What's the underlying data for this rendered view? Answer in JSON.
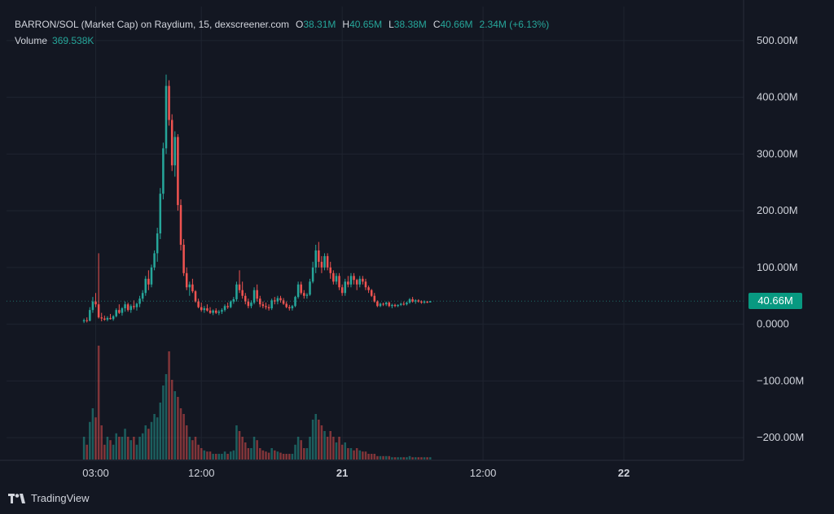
{
  "legend": {
    "symbol": "BARRON/SOL (Market Cap) on Raydium, 15, dexscreener.com",
    "o_label": "O",
    "o_value": "38.31M",
    "h_label": "H",
    "h_value": "40.65M",
    "l_label": "L",
    "l_value": "38.38M",
    "c_label": "C",
    "c_value": "40.66M",
    "change": "2.34M (+6.13%)",
    "volume_label": "Volume",
    "volume_value": "369.538K"
  },
  "last_price_tag": "40.66M",
  "footer": {
    "brand": "TradingView"
  },
  "colors": {
    "up": "#26a69a",
    "down": "#ef5350",
    "background": "#131722",
    "grid": "#1f2430",
    "accent": "#089981"
  },
  "chart_data": {
    "type": "candlestick",
    "y_axis": {
      "ticks": [
        "500.00M",
        "400.00M",
        "300.00M",
        "200.00M",
        "100.00M",
        "0.0000",
        "−100.00M",
        "−200.00M"
      ],
      "tick_values": [
        500,
        400,
        300,
        200,
        100,
        0,
        -100,
        -200
      ],
      "unit": "M",
      "range": [
        -240,
        560
      ]
    },
    "x_axis": {
      "ticks": [
        "03:00",
        "12:00",
        "21",
        "12:00",
        "22"
      ],
      "bold": [
        false,
        false,
        true,
        false,
        true
      ],
      "tick_hours": [
        3,
        12,
        24,
        36,
        48
      ],
      "range_hours": [
        -4.6,
        58.2
      ]
    },
    "start_hour": 2.0,
    "interval_hours": 0.25,
    "volume_max": 1.0,
    "candles": [
      [
        5,
        10,
        2,
        7,
        "u",
        0.2
      ],
      [
        7,
        12,
        3,
        6,
        "d",
        0.13
      ],
      [
        6,
        30,
        5,
        25,
        "u",
        0.33
      ],
      [
        25,
        48,
        20,
        40,
        "u",
        0.45
      ],
      [
        40,
        55,
        30,
        35,
        "d",
        0.37
      ],
      [
        35,
        125,
        10,
        12,
        "d",
        1.0
      ],
      [
        12,
        20,
        5,
        10,
        "d",
        0.3
      ],
      [
        10,
        15,
        6,
        8,
        "d",
        0.13
      ],
      [
        8,
        14,
        5,
        11,
        "u",
        0.2
      ],
      [
        11,
        18,
        8,
        9,
        "d",
        0.17
      ],
      [
        9,
        16,
        6,
        14,
        "u",
        0.13
      ],
      [
        14,
        28,
        12,
        25,
        "u",
        0.23
      ],
      [
        25,
        35,
        18,
        20,
        "d",
        0.2
      ],
      [
        20,
        30,
        15,
        28,
        "u",
        0.2
      ],
      [
        28,
        40,
        22,
        35,
        "u",
        0.27
      ],
      [
        35,
        38,
        22,
        25,
        "d",
        0.2
      ],
      [
        25,
        35,
        20,
        32,
        "u",
        0.17
      ],
      [
        32,
        42,
        26,
        30,
        "d",
        0.2
      ],
      [
        30,
        38,
        24,
        36,
        "u",
        0.13
      ],
      [
        36,
        50,
        30,
        45,
        "u",
        0.2
      ],
      [
        45,
        60,
        40,
        55,
        "u",
        0.23
      ],
      [
        55,
        85,
        50,
        80,
        "u",
        0.3
      ],
      [
        80,
        95,
        60,
        70,
        "d",
        0.27
      ],
      [
        70,
        105,
        65,
        100,
        "u",
        0.33
      ],
      [
        100,
        130,
        95,
        125,
        "u",
        0.4
      ],
      [
        125,
        170,
        110,
        160,
        "u",
        0.37
      ],
      [
        160,
        240,
        150,
        230,
        "u",
        0.5
      ],
      [
        230,
        320,
        220,
        310,
        "u",
        0.65
      ],
      [
        310,
        440,
        300,
        420,
        "u",
        0.75
      ],
      [
        420,
        430,
        350,
        360,
        "d",
        0.95
      ],
      [
        360,
        370,
        270,
        280,
        "d",
        0.7
      ],
      [
        280,
        340,
        260,
        330,
        "u",
        0.6
      ],
      [
        330,
        335,
        200,
        210,
        "d",
        0.55
      ],
      [
        210,
        220,
        130,
        140,
        "d",
        0.45
      ],
      [
        140,
        150,
        85,
        90,
        "d",
        0.4
      ],
      [
        90,
        100,
        60,
        65,
        "d",
        0.3
      ],
      [
        65,
        75,
        50,
        70,
        "u",
        0.2
      ],
      [
        70,
        80,
        55,
        58,
        "d",
        0.17
      ],
      [
        58,
        60,
        38,
        40,
        "d",
        0.2
      ],
      [
        40,
        45,
        28,
        30,
        "d",
        0.13
      ],
      [
        30,
        38,
        22,
        25,
        "d",
        0.1
      ],
      [
        25,
        32,
        20,
        28,
        "u",
        0.08
      ],
      [
        28,
        35,
        22,
        24,
        "d",
        0.07
      ],
      [
        24,
        30,
        18,
        20,
        "d",
        0.07
      ],
      [
        20,
        26,
        16,
        24,
        "u",
        0.05
      ],
      [
        24,
        28,
        18,
        20,
        "d",
        0.05
      ],
      [
        20,
        25,
        16,
        22,
        "u",
        0.05
      ],
      [
        22,
        28,
        18,
        25,
        "u",
        0.05
      ],
      [
        25,
        35,
        22,
        32,
        "u",
        0.07
      ],
      [
        32,
        38,
        27,
        30,
        "d",
        0.05
      ],
      [
        30,
        42,
        28,
        40,
        "u",
        0.07
      ],
      [
        40,
        48,
        36,
        44,
        "u",
        0.08
      ],
      [
        44,
        75,
        40,
        70,
        "u",
        0.3
      ],
      [
        70,
        95,
        55,
        60,
        "d",
        0.25
      ],
      [
        60,
        75,
        45,
        50,
        "d",
        0.2
      ],
      [
        50,
        55,
        35,
        40,
        "d",
        0.15
      ],
      [
        40,
        45,
        28,
        32,
        "d",
        0.1
      ],
      [
        32,
        42,
        28,
        38,
        "u",
        0.1
      ],
      [
        38,
        65,
        35,
        60,
        "u",
        0.2
      ],
      [
        60,
        70,
        40,
        45,
        "d",
        0.17
      ],
      [
        45,
        50,
        30,
        35,
        "d",
        0.1
      ],
      [
        35,
        40,
        28,
        32,
        "d",
        0.08
      ],
      [
        32,
        38,
        26,
        30,
        "d",
        0.07
      ],
      [
        30,
        35,
        24,
        28,
        "d",
        0.06
      ],
      [
        28,
        45,
        25,
        42,
        "u",
        0.1
      ],
      [
        42,
        48,
        35,
        40,
        "d",
        0.08
      ],
      [
        40,
        50,
        35,
        46,
        "u",
        0.07
      ],
      [
        46,
        50,
        38,
        42,
        "d",
        0.06
      ],
      [
        42,
        46,
        34,
        36,
        "d",
        0.05
      ],
      [
        36,
        40,
        28,
        30,
        "d",
        0.05
      ],
      [
        30,
        34,
        24,
        28,
        "d",
        0.05
      ],
      [
        28,
        34,
        24,
        32,
        "u",
        0.05
      ],
      [
        32,
        50,
        30,
        48,
        "u",
        0.13
      ],
      [
        48,
        75,
        45,
        70,
        "u",
        0.2
      ],
      [
        70,
        75,
        52,
        55,
        "d",
        0.17
      ],
      [
        55,
        60,
        45,
        50,
        "d",
        0.1
      ],
      [
        50,
        55,
        45,
        52,
        "u",
        0.1
      ],
      [
        52,
        80,
        50,
        75,
        "u",
        0.2
      ],
      [
        75,
        110,
        72,
        100,
        "u",
        0.35
      ],
      [
        100,
        140,
        90,
        130,
        "u",
        0.4
      ],
      [
        130,
        145,
        100,
        110,
        "d",
        0.35
      ],
      [
        110,
        120,
        90,
        100,
        "d",
        0.3
      ],
      [
        100,
        125,
        95,
        120,
        "u",
        0.25
      ],
      [
        120,
        125,
        95,
        100,
        "d",
        0.2
      ],
      [
        100,
        110,
        80,
        90,
        "d",
        0.25
      ],
      [
        90,
        95,
        70,
        75,
        "d",
        0.2
      ],
      [
        75,
        90,
        70,
        85,
        "u",
        0.15
      ],
      [
        85,
        90,
        60,
        65,
        "d",
        0.2
      ],
      [
        65,
        70,
        50,
        55,
        "d",
        0.13
      ],
      [
        55,
        80,
        50,
        75,
        "u",
        0.15
      ],
      [
        75,
        85,
        65,
        70,
        "d",
        0.1
      ],
      [
        70,
        90,
        65,
        85,
        "u",
        0.1
      ],
      [
        85,
        90,
        70,
        78,
        "d",
        0.08
      ],
      [
        78,
        80,
        60,
        70,
        "d",
        0.1
      ],
      [
        70,
        85,
        65,
        80,
        "u",
        0.08
      ],
      [
        80,
        85,
        70,
        75,
        "d",
        0.07
      ],
      [
        75,
        80,
        60,
        65,
        "d",
        0.07
      ],
      [
        65,
        68,
        55,
        60,
        "d",
        0.05
      ],
      [
        60,
        62,
        48,
        50,
        "d",
        0.05
      ],
      [
        50,
        55,
        38,
        40,
        "d",
        0.05
      ],
      [
        40,
        42,
        30,
        32,
        "d",
        0.03
      ],
      [
        32,
        38,
        30,
        36,
        "u",
        0.03
      ],
      [
        36,
        38,
        32,
        35,
        "d",
        0.03
      ],
      [
        35,
        40,
        32,
        38,
        "u",
        0.03
      ],
      [
        38,
        40,
        30,
        32,
        "d",
        0.03
      ],
      [
        32,
        36,
        28,
        34,
        "u",
        0.02
      ],
      [
        34,
        36,
        30,
        32,
        "d",
        0.02
      ],
      [
        32,
        35,
        30,
        34,
        "u",
        0.02
      ],
      [
        34,
        38,
        32,
        36,
        "u",
        0.02
      ],
      [
        36,
        40,
        33,
        35,
        "d",
        0.02
      ],
      [
        35,
        40,
        33,
        38,
        "u",
        0.02
      ],
      [
        38,
        46,
        36,
        44,
        "u",
        0.03
      ],
      [
        44,
        48,
        38,
        40,
        "d",
        0.02
      ],
      [
        40,
        44,
        36,
        42,
        "u",
        0.02
      ],
      [
        42,
        44,
        38,
        40,
        "d",
        0.02
      ],
      [
        40,
        42,
        36,
        38,
        "d",
        0.02
      ],
      [
        38,
        42,
        36,
        40,
        "u",
        0.02
      ],
      [
        40,
        41,
        37,
        38,
        "d",
        0.02
      ],
      [
        38.31,
        40.65,
        38.38,
        40.66,
        "u",
        0.02
      ]
    ]
  }
}
